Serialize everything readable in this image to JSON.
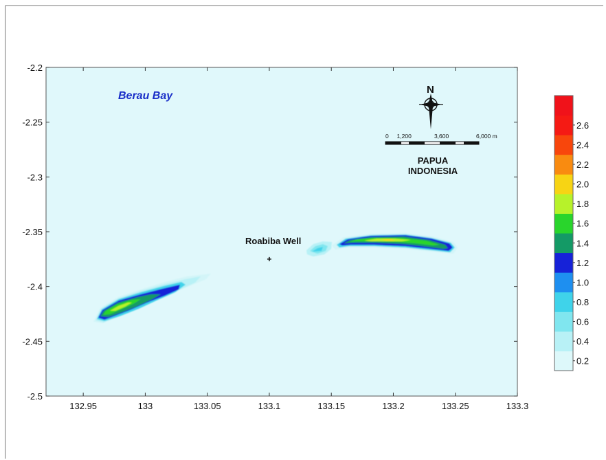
{
  "map": {
    "bay_label": "Berau Bay",
    "well_label": "Roabiba Well",
    "region_label_1": "PAPUA",
    "region_label_2": "INDONESIA",
    "north_label": "N",
    "x_ticks": [
      "132.95",
      "133",
      "133.05",
      "133.1",
      "133.15",
      "133.2",
      "133.25",
      "133.3"
    ],
    "y_ticks": [
      "-2.2",
      "-2.25",
      "-2.3",
      "-2.35",
      "-2.4",
      "-2.45",
      "-2.5"
    ],
    "x_range": [
      132.92,
      133.3
    ],
    "y_range": [
      -2.5,
      -2.2
    ],
    "well_location": {
      "lon": 133.1,
      "lat": -2.375
    },
    "background_color": "#e0f8fb"
  },
  "scale_bar": {
    "labels": [
      "0",
      "1,200",
      "3,600",
      "6,000 m"
    ],
    "distances_m": [
      0,
      1200,
      3600,
      6000
    ]
  },
  "colorbar": {
    "labels": [
      "0.2",
      "0.4",
      "0.6",
      "0.8",
      "1.0",
      "1.2",
      "1.4",
      "1.6",
      "1.8",
      "2.0",
      "2.2",
      "2.4",
      "2.6"
    ],
    "colors": [
      "#ddf8fa",
      "#b8f1f6",
      "#80e6ef",
      "#3fd3ea",
      "#1e8ff0",
      "#1622d8",
      "#149a66",
      "#29d52c",
      "#b7f22a",
      "#f7d414",
      "#f98b10",
      "#f8460c",
      "#f51a14",
      "#f0121a"
    ]
  },
  "chart_data": {
    "type": "heatmap",
    "title": "",
    "xlabel": "",
    "ylabel": "",
    "xlim": [
      132.92,
      133.3
    ],
    "ylim": [
      -2.5,
      -2.2
    ],
    "value_range": [
      0.2,
      2.8
    ],
    "features": [
      {
        "name": "western-body",
        "lon_range": [
          132.93,
          133.06
        ],
        "lat_range": [
          -2.435,
          -2.39
        ],
        "peak_value": 1.8
      },
      {
        "name": "eastern-body",
        "lon_range": [
          133.13,
          133.25
        ],
        "lat_range": [
          -2.37,
          -2.355
        ],
        "peak_value": 1.8
      }
    ]
  }
}
